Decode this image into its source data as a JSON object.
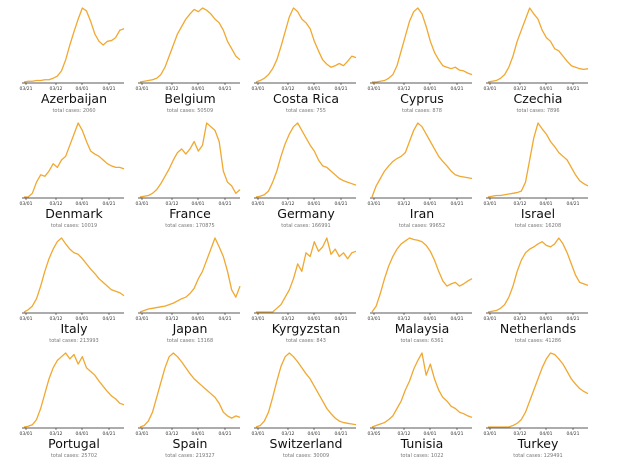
{
  "chart_data": {
    "type": "line",
    "line_color": "#f0a830",
    "axis_color": "#222222",
    "case_label": "total cases",
    "panels": [
      {
        "name": "Azerbaijan",
        "cases": "2060",
        "x_ticks": [
          "03/21",
          "03/12",
          "04/01",
          "04/21"
        ],
        "values": [
          0.0,
          0.01,
          0.01,
          0.02,
          0.02,
          0.03,
          0.03,
          0.05,
          0.08,
          0.15,
          0.3,
          0.5,
          0.68,
          0.85,
          1.0,
          0.96,
          0.82,
          0.65,
          0.55,
          0.5,
          0.55,
          0.56,
          0.6,
          0.7,
          0.72
        ]
      },
      {
        "name": "Belgium",
        "cases": "50509",
        "x_ticks": [
          "03/01",
          "03/12",
          "04/01",
          "04/21"
        ],
        "values": [
          0.0,
          0.01,
          0.02,
          0.03,
          0.05,
          0.1,
          0.2,
          0.35,
          0.5,
          0.65,
          0.75,
          0.85,
          0.92,
          0.98,
          0.95,
          1.0,
          0.97,
          0.92,
          0.85,
          0.8,
          0.7,
          0.55,
          0.45,
          0.35,
          0.3
        ]
      },
      {
        "name": "Costa Rica",
        "cases": "755",
        "x_ticks": [
          "03/01",
          "03/12",
          "04/01",
          "04/21"
        ],
        "values": [
          0.0,
          0.02,
          0.05,
          0.1,
          0.18,
          0.3,
          0.48,
          0.68,
          0.88,
          1.0,
          0.95,
          0.85,
          0.8,
          0.72,
          0.55,
          0.42,
          0.3,
          0.24,
          0.2,
          0.22,
          0.25,
          0.22,
          0.28,
          0.35,
          0.33
        ]
      },
      {
        "name": "Cyprus",
        "cases": "878",
        "x_ticks": [
          "03/01",
          "03/12",
          "04/01",
          "04/21"
        ],
        "values": [
          0.0,
          0.0,
          0.01,
          0.02,
          0.05,
          0.1,
          0.22,
          0.42,
          0.62,
          0.82,
          0.95,
          1.0,
          0.92,
          0.75,
          0.55,
          0.4,
          0.3,
          0.22,
          0.2,
          0.18,
          0.2,
          0.16,
          0.15,
          0.12,
          0.1
        ]
      },
      {
        "name": "Czechia",
        "cases": "7896",
        "x_ticks": [
          "03/01",
          "03/12",
          "04/01",
          "04/21"
        ],
        "values": [
          0.0,
          0.01,
          0.02,
          0.05,
          0.1,
          0.2,
          0.35,
          0.55,
          0.7,
          0.85,
          1.0,
          0.92,
          0.85,
          0.7,
          0.6,
          0.55,
          0.45,
          0.42,
          0.35,
          0.28,
          0.22,
          0.2,
          0.18,
          0.17,
          0.18
        ]
      },
      {
        "name": "Denmark",
        "cases": "10019",
        "x_ticks": [
          "03/01",
          "03/12",
          "04/01",
          "04/21"
        ],
        "values": [
          0.0,
          0.0,
          0.05,
          0.2,
          0.3,
          0.28,
          0.35,
          0.45,
          0.4,
          0.5,
          0.55,
          0.7,
          0.85,
          1.0,
          0.9,
          0.75,
          0.62,
          0.58,
          0.55,
          0.5,
          0.45,
          0.42,
          0.4,
          0.4,
          0.38
        ]
      },
      {
        "name": "France",
        "cases": "170875",
        "x_ticks": [
          "03/01",
          "03/12",
          "04/01",
          "04/21"
        ],
        "values": [
          0.0,
          0.01,
          0.02,
          0.05,
          0.1,
          0.18,
          0.28,
          0.38,
          0.5,
          0.6,
          0.65,
          0.58,
          0.65,
          0.75,
          0.62,
          0.7,
          1.0,
          0.95,
          0.9,
          0.75,
          0.35,
          0.2,
          0.15,
          0.05,
          0.1
        ]
      },
      {
        "name": "Germany",
        "cases": "166991",
        "x_ticks": [
          "03/01",
          "03/12",
          "04/01",
          "04/21"
        ],
        "values": [
          0.0,
          0.01,
          0.03,
          0.08,
          0.2,
          0.35,
          0.55,
          0.72,
          0.85,
          0.95,
          1.0,
          0.9,
          0.8,
          0.7,
          0.62,
          0.5,
          0.42,
          0.4,
          0.35,
          0.3,
          0.25,
          0.22,
          0.2,
          0.18,
          0.16
        ]
      },
      {
        "name": "Iran",
        "cases": "99652",
        "x_ticks": [
          "03/01",
          "03/12",
          "04/01",
          "04/21"
        ],
        "values": [
          0.0,
          0.15,
          0.25,
          0.35,
          0.42,
          0.48,
          0.52,
          0.55,
          0.6,
          0.75,
          0.9,
          1.0,
          0.95,
          0.85,
          0.75,
          0.65,
          0.55,
          0.48,
          0.42,
          0.35,
          0.3,
          0.28,
          0.27,
          0.26,
          0.25
        ]
      },
      {
        "name": "Israel",
        "cases": "16208",
        "x_ticks": [
          "03/01",
          "03/12",
          "04/01",
          "04/21"
        ],
        "values": [
          0.0,
          0.01,
          0.02,
          0.02,
          0.03,
          0.04,
          0.05,
          0.06,
          0.08,
          0.2,
          0.5,
          0.8,
          1.0,
          0.92,
          0.85,
          0.75,
          0.68,
          0.6,
          0.55,
          0.5,
          0.4,
          0.3,
          0.22,
          0.18,
          0.15
        ]
      },
      {
        "name": "Italy",
        "cases": "213993",
        "x_ticks": [
          "03/01",
          "03/12",
          "04/01",
          "04/21"
        ],
        "values": [
          0.0,
          0.03,
          0.08,
          0.18,
          0.35,
          0.55,
          0.72,
          0.85,
          0.95,
          1.0,
          0.92,
          0.85,
          0.8,
          0.78,
          0.72,
          0.65,
          0.58,
          0.52,
          0.45,
          0.4,
          0.35,
          0.3,
          0.28,
          0.26,
          0.22
        ]
      },
      {
        "name": "Japan",
        "cases": "13168",
        "x_ticks": [
          "03/01",
          "03/12",
          "04/01",
          "04/21"
        ],
        "values": [
          0.0,
          0.02,
          0.04,
          0.05,
          0.06,
          0.07,
          0.08,
          0.1,
          0.12,
          0.15,
          0.18,
          0.2,
          0.25,
          0.32,
          0.45,
          0.55,
          0.7,
          0.85,
          1.0,
          0.88,
          0.75,
          0.55,
          0.3,
          0.2,
          0.35
        ]
      },
      {
        "name": "Kyrgyzstan",
        "cases": "843",
        "x_ticks": [
          "03/01",
          "03/12",
          "04/01",
          "04/21"
        ],
        "values": [
          0.0,
          0.0,
          0.0,
          0.0,
          0.0,
          0.05,
          0.1,
          0.2,
          0.3,
          0.45,
          0.65,
          0.55,
          0.8,
          0.75,
          0.95,
          0.82,
          0.88,
          1.0,
          0.78,
          0.85,
          0.75,
          0.8,
          0.72,
          0.8,
          0.82
        ]
      },
      {
        "name": "Malaysia",
        "cases": "6361",
        "x_ticks": [
          "03/01",
          "03/12",
          "04/01",
          "04/21"
        ],
        "values": [
          0.0,
          0.08,
          0.25,
          0.45,
          0.62,
          0.75,
          0.85,
          0.92,
          0.96,
          1.0,
          0.98,
          0.97,
          0.95,
          0.9,
          0.82,
          0.7,
          0.55,
          0.42,
          0.35,
          0.38,
          0.4,
          0.35,
          0.38,
          0.42,
          0.45
        ]
      },
      {
        "name": "Netherlands",
        "cases": "41286",
        "x_ticks": [
          "03/01",
          "03/12",
          "04/01",
          "04/21"
        ],
        "values": [
          0.0,
          0.01,
          0.02,
          0.05,
          0.1,
          0.2,
          0.35,
          0.55,
          0.7,
          0.8,
          0.85,
          0.88,
          0.92,
          0.95,
          0.9,
          0.88,
          0.92,
          1.0,
          0.92,
          0.8,
          0.65,
          0.5,
          0.4,
          0.38,
          0.36
        ]
      },
      {
        "name": "Portugal",
        "cases": "25702",
        "x_ticks": [
          "03/01",
          "03/12",
          "04/01",
          "04/21"
        ],
        "values": [
          0.0,
          0.01,
          0.03,
          0.1,
          0.25,
          0.45,
          0.65,
          0.8,
          0.9,
          0.95,
          1.0,
          0.92,
          0.98,
          0.85,
          0.95,
          0.8,
          0.75,
          0.7,
          0.62,
          0.55,
          0.48,
          0.42,
          0.38,
          0.32,
          0.3
        ]
      },
      {
        "name": "Spain",
        "cases": "219327",
        "x_ticks": [
          "03/01",
          "03/12",
          "04/01",
          "04/21"
        ],
        "values": [
          0.0,
          0.02,
          0.08,
          0.2,
          0.4,
          0.6,
          0.8,
          0.95,
          1.0,
          0.95,
          0.88,
          0.8,
          0.72,
          0.65,
          0.6,
          0.55,
          0.5,
          0.45,
          0.4,
          0.32,
          0.2,
          0.15,
          0.12,
          0.15,
          0.13
        ]
      },
      {
        "name": "Switzerland",
        "cases": "30009",
        "x_ticks": [
          "03/01",
          "03/12",
          "04/01",
          "04/21"
        ],
        "values": [
          0.0,
          0.02,
          0.08,
          0.2,
          0.4,
          0.62,
          0.82,
          0.95,
          1.0,
          0.95,
          0.88,
          0.8,
          0.72,
          0.65,
          0.55,
          0.45,
          0.35,
          0.25,
          0.18,
          0.12,
          0.08,
          0.06,
          0.05,
          0.04,
          0.03
        ]
      },
      {
        "name": "Tunisia",
        "cases": "1022",
        "x_ticks": [
          "03/05",
          "03/12",
          "04/01",
          "04/21"
        ],
        "values": [
          0.0,
          0.02,
          0.04,
          0.06,
          0.1,
          0.15,
          0.25,
          0.35,
          0.5,
          0.62,
          0.78,
          0.9,
          1.0,
          0.7,
          0.85,
          0.65,
          0.5,
          0.4,
          0.35,
          0.28,
          0.25,
          0.2,
          0.18,
          0.15,
          0.13
        ]
      },
      {
        "name": "Turkey",
        "cases": "129491",
        "x_ticks": [
          "03/01",
          "03/12",
          "04/01",
          "04/21"
        ],
        "values": [
          0.0,
          0.0,
          0.0,
          0.0,
          0.0,
          0.0,
          0.02,
          0.05,
          0.1,
          0.2,
          0.35,
          0.5,
          0.65,
          0.8,
          0.92,
          1.0,
          0.98,
          0.92,
          0.85,
          0.75,
          0.65,
          0.58,
          0.52,
          0.48,
          0.45
        ]
      }
    ]
  }
}
